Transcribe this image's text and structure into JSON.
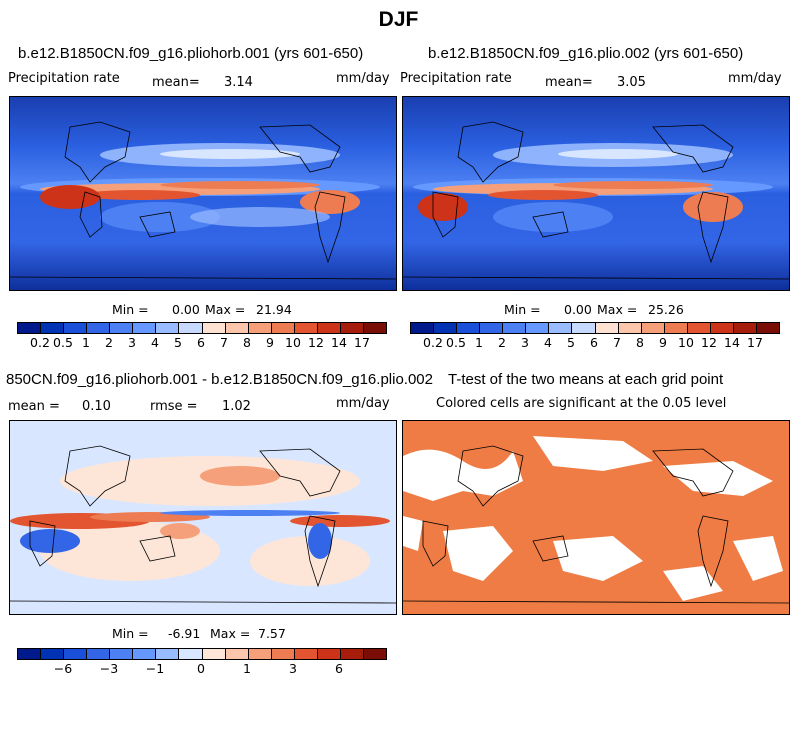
{
  "figure_title": "DJF",
  "colors": {
    "precip_scale": [
      "#001a8c",
      "#0033b3",
      "#1a4fd9",
      "#3366e6",
      "#4d80f2",
      "#6699ff",
      "#99bbff",
      "#c7d9ff",
      "#fde1d3",
      "#fcc6ad",
      "#f5a07a",
      "#ee7c52",
      "#e35530",
      "#cc3318",
      "#a61d0c",
      "#7a0d05"
    ],
    "diff_scale": [
      "#001a8c",
      "#0033b3",
      "#1a4fd9",
      "#3366e6",
      "#4d80f2",
      "#6699ff",
      "#99bbff",
      "#d9e6ff",
      "#fde6d8",
      "#fcc6ad",
      "#f5a07a",
      "#ee7c52",
      "#e35530",
      "#cc3318",
      "#a61d0c",
      "#7a0d05"
    ],
    "significance": "#ee7c44",
    "ocean_dark": "#1c55d6"
  },
  "panels": {
    "top_left": {
      "title": "b.e12.B1850CN.f09_g16.pliohorb.001 (yrs 601-650)",
      "left_label": "Precipitation rate",
      "mean_label": "mean=",
      "mean_value": "3.14",
      "units": "mm/day",
      "min_label": "Min =",
      "min_value": "0.00",
      "max_label": "Max =",
      "max_value": "21.94"
    },
    "top_right": {
      "title": "b.e12.B1850CN.f09_g16.plio.002 (yrs 601-650)",
      "left_label": "Precipitation rate",
      "mean_label": "mean=",
      "mean_value": "3.05",
      "units": "mm/day",
      "min_label": "Min =",
      "min_value": "0.00",
      "max_label": "Max =",
      "max_value": "25.26"
    },
    "bottom_left": {
      "title": "850CN.f09_g16.pliohorb.001 - b.e12.B1850CN.f09_g16.plio.002",
      "mean_label": "mean =",
      "mean_value": "0.10",
      "rmse_label": "rmse =",
      "rmse_value": "1.02",
      "units": "mm/day",
      "min_label": "Min =",
      "min_value": "-6.91",
      "max_label": "Max =",
      "max_value": "7.57"
    },
    "bottom_right": {
      "title": "T-test of the two means at each grid point",
      "subtitle": "Colored cells are significant at the 0.05 level"
    }
  },
  "colorbars": {
    "precip_ticks": [
      "0.2",
      "0.5",
      "1",
      "2",
      "3",
      "4",
      "5",
      "6",
      "7",
      "8",
      "9",
      "10",
      "12",
      "14",
      "17"
    ],
    "diff_ticks": [
      "−6",
      "−3",
      "−1",
      "0",
      "1",
      "3",
      "6"
    ]
  }
}
